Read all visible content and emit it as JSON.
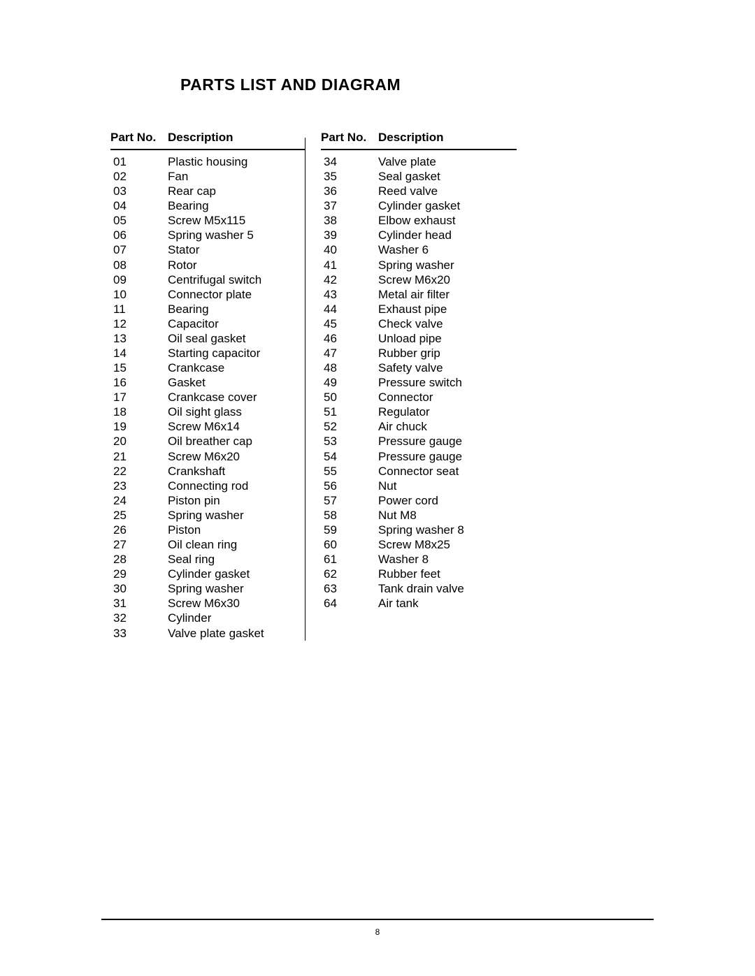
{
  "title": "PARTS LIST AND DIAGRAM",
  "headers": {
    "partNo": "Part No.",
    "description": "Description"
  },
  "leftTable": [
    {
      "no": "01",
      "desc": "Plastic housing"
    },
    {
      "no": "02",
      "desc": "Fan"
    },
    {
      "no": "03",
      "desc": "Rear cap"
    },
    {
      "no": "04",
      "desc": "Bearing"
    },
    {
      "no": "05",
      "desc": "Screw M5x115"
    },
    {
      "no": "06",
      "desc": "Spring washer 5"
    },
    {
      "no": "07",
      "desc": "Stator"
    },
    {
      "no": "08",
      "desc": "Rotor"
    },
    {
      "no": "09",
      "desc": "Centrifugal switch"
    },
    {
      "no": "10",
      "desc": "Connector plate"
    },
    {
      "no": "11",
      "desc": "Bearing"
    },
    {
      "no": "12",
      "desc": "Capacitor"
    },
    {
      "no": "13",
      "desc": "Oil seal gasket"
    },
    {
      "no": "14",
      "desc": "Starting capacitor"
    },
    {
      "no": "15",
      "desc": "Crankcase"
    },
    {
      "no": "16",
      "desc": "Gasket"
    },
    {
      "no": "17",
      "desc": "Crankcase cover"
    },
    {
      "no": "18",
      "desc": "Oil sight glass"
    },
    {
      "no": "19",
      "desc": "Screw M6x14"
    },
    {
      "no": "20",
      "desc": "Oil breather cap"
    },
    {
      "no": "21",
      "desc": "Screw M6x20"
    },
    {
      "no": "22",
      "desc": "Crankshaft"
    },
    {
      "no": "23",
      "desc": "Connecting rod"
    },
    {
      "no": "24",
      "desc": "Piston pin"
    },
    {
      "no": "25",
      "desc": "Spring washer"
    },
    {
      "no": "26",
      "desc": "Piston"
    },
    {
      "no": "27",
      "desc": "Oil clean ring"
    },
    {
      "no": "28",
      "desc": "Seal ring"
    },
    {
      "no": "29",
      "desc": "Cylinder gasket"
    },
    {
      "no": "30",
      "desc": "Spring washer"
    },
    {
      "no": "31",
      "desc": "Screw M6x30"
    },
    {
      "no": "32",
      "desc": "Cylinder"
    },
    {
      "no": "33",
      "desc": "Valve plate gasket"
    }
  ],
  "rightTable": [
    {
      "no": "34",
      "desc": "Valve plate"
    },
    {
      "no": "35",
      "desc": "Seal gasket"
    },
    {
      "no": "36",
      "desc": "Reed valve"
    },
    {
      "no": "37",
      "desc": "Cylinder gasket"
    },
    {
      "no": "38",
      "desc": "Elbow exhaust"
    },
    {
      "no": "39",
      "desc": "Cylinder head"
    },
    {
      "no": "40",
      "desc": "Washer 6"
    },
    {
      "no": "41",
      "desc": "Spring washer"
    },
    {
      "no": "42",
      "desc": "Screw M6x20"
    },
    {
      "no": "43",
      "desc": "Metal air filter"
    },
    {
      "no": "44",
      "desc": "Exhaust pipe"
    },
    {
      "no": "45",
      "desc": "Check valve"
    },
    {
      "no": "46",
      "desc": "Unload pipe"
    },
    {
      "no": "47",
      "desc": "Rubber grip"
    },
    {
      "no": "48",
      "desc": "Safety valve"
    },
    {
      "no": "49",
      "desc": "Pressure switch"
    },
    {
      "no": "50",
      "desc": "Connector"
    },
    {
      "no": "51",
      "desc": "Regulator"
    },
    {
      "no": "52",
      "desc": "Air chuck"
    },
    {
      "no": "53",
      "desc": "Pressure gauge"
    },
    {
      "no": "54",
      "desc": "Pressure gauge"
    },
    {
      "no": "55",
      "desc": "Connector seat"
    },
    {
      "no": "56",
      "desc": "Nut"
    },
    {
      "no": "57",
      "desc": "Power cord"
    },
    {
      "no": "58",
      "desc": "Nut M8"
    },
    {
      "no": "59",
      "desc": "Spring washer 8"
    },
    {
      "no": "60",
      "desc": "Screw M8x25"
    },
    {
      "no": "61",
      "desc": "Washer 8"
    },
    {
      "no": "62",
      "desc": "Rubber feet"
    },
    {
      "no": "63",
      "desc": "Tank drain valve"
    },
    {
      "no": "64",
      "desc": "Air tank"
    }
  ],
  "pageNumber": "8",
  "styling": {
    "pageWidth": 1080,
    "pageHeight": 1397,
    "backgroundColor": "#ffffff",
    "textColor": "#000000",
    "titleFontSize": 23,
    "bodyFontSize": 17,
    "pageNumberFontSize": 12,
    "lineHeight": 1.24,
    "dividerColor": "#000000",
    "borderColor": "#000000"
  }
}
